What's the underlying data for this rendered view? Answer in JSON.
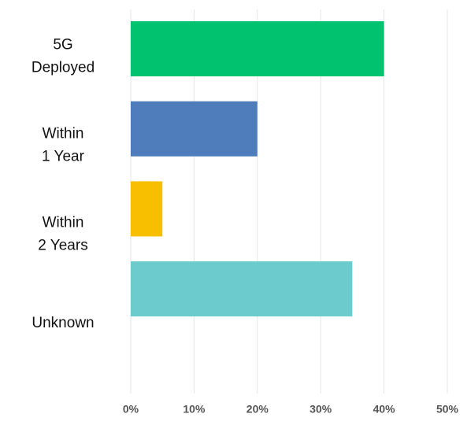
{
  "chart_data": {
    "type": "bar",
    "orientation": "horizontal",
    "categories": [
      [
        "5G",
        "Deployed"
      ],
      [
        "Within",
        "1 Year"
      ],
      [
        "Within",
        "2 Years"
      ],
      [
        "Unknown"
      ]
    ],
    "values": [
      40,
      20,
      5,
      35
    ],
    "colors": [
      "#00c26f",
      "#4f7cba",
      "#f8be00",
      "#6ccbcd"
    ],
    "xlim": [
      0,
      50
    ],
    "xticks": [
      {
        "value": 0,
        "label": "0%"
      },
      {
        "value": 10,
        "label": "10%"
      },
      {
        "value": 20,
        "label": "20%"
      },
      {
        "value": 30,
        "label": "30%"
      },
      {
        "value": 40,
        "label": "40%"
      },
      {
        "value": 50,
        "label": "50%"
      }
    ],
    "grid": true
  }
}
